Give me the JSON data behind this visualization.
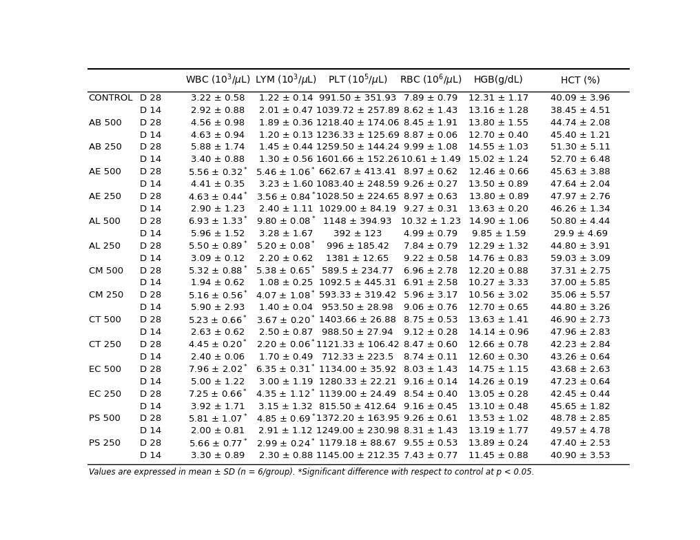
{
  "col_headers": [
    "WBC (10^3/uL)",
    "LYM (10^3/uL)",
    "PLT (10^5/uL)",
    "RBC (10^6/uL)",
    "HGB(g/dL)",
    "HCT (%)"
  ],
  "rows": [
    [
      "CONTROL",
      "D 28",
      "3.22 +/- 0.58",
      "1.22 +/- 0.14",
      "991.50 +/- 351.93",
      "7.89 +/- 0.79",
      "12.31 +/- 1.17",
      "40.09 +/- 3.96"
    ],
    [
      "",
      "D 14",
      "2.92 +/- 0.88",
      "2.01 +/- 0.47",
      "1039.72 +/- 257.89",
      "8.62 +/- 1.43",
      "13.16 +/- 1.28",
      "38.45 +/- 4.51"
    ],
    [
      "AB 500",
      "D 28",
      "4.56 +/- 0.98",
      "1.89 +/- 0.36",
      "1218.40 +/- 174.06",
      "8.45 +/- 1.91",
      "13.80 +/- 1.55",
      "44.74 +/- 2.08"
    ],
    [
      "",
      "D 14",
      "4.63 +/- 0.94",
      "1.20 +/- 0.13",
      "1236.33 +/- 125.69",
      "8.87 +/- 0.06",
      "12.70 +/- 0.40",
      "45.40 +/- 1.21"
    ],
    [
      "AB 250",
      "D 28",
      "5.88 +/- 1.74",
      "1.45 +/- 0.44",
      "1259.50 +/- 144.24",
      "9.99 +/- 1.08",
      "14.55 +/- 1.03",
      "51.30 +/- 5.11"
    ],
    [
      "",
      "D 14",
      "3.40 +/- 0.88",
      "1.30 +/- 0.56",
      "1601.66 +/- 152.26",
      "10.61 +/- 1.49",
      "15.02 +/- 1.24",
      "52.70 +/- 6.48"
    ],
    [
      "AE 500",
      "D 28",
      "5.56 +/- 0.32*",
      "5.46 +/- 1.06*",
      "662.67 +/- 413.41",
      "8.97 +/- 0.62",
      "12.46 +/- 0.66",
      "45.63 +/- 3.88"
    ],
    [
      "",
      "D 14",
      "4.41 +/- 0.35",
      "3.23 +/- 1.60",
      "1083.40 +/- 248.59",
      "9.26 +/- 0.27",
      "13.50 +/- 0.89",
      "47.64 +/- 2.04"
    ],
    [
      "AE 250",
      "D 28",
      "4.63 +/- 0.44*",
      "3.56 +/- 0.84*",
      "1028.50 +/- 224.65",
      "8.97 +/- 0.63",
      "13.80 +/- 0.89",
      "47.97 +/- 2.76"
    ],
    [
      "",
      "D 14",
      "2.90 +/- 1.23",
      "2.40 +/- 1.11",
      "1029.00 +/- 84.19",
      "9.27 +/- 0.31",
      "13.63 +/- 0.20",
      "46.26 +/- 1.34"
    ],
    [
      "AL 500",
      "D 28",
      "6.93 +/- 1.33*",
      "9.80 +/- 0.08*",
      "1148 +/- 394.93",
      "10.32 +/- 1.23",
      "14.90 +/- 1.06",
      "50.80 +/- 4.44"
    ],
    [
      "",
      "D 14",
      "5.96 +/- 1.52",
      "3.28 +/- 1.67",
      "392 +/- 123",
      "4.99 +/- 0.79",
      "9.85 +/- 1.59",
      "29.9 +/- 4.69"
    ],
    [
      "AL 250",
      "D 28",
      "5.50 +/- 0.89*",
      "5.20 +/- 0.08*",
      "996 +/- 185.42",
      "7.84 +/- 0.79",
      "12.29 +/- 1.32",
      "44.80 +/- 3.91"
    ],
    [
      "",
      "D 14",
      "3.09 +/- 0.12",
      "2.20 +/- 0.62",
      "1381 +/- 12.65",
      "9.22 +/- 0.58",
      "14.76 +/- 0.83",
      "59.03 +/- 3.09"
    ],
    [
      "CM 500",
      "D 28",
      "5.32 +/- 0.88*",
      "5.38 +/- 0.65*",
      "589.5 +/- 234.77",
      "6.96 +/- 2.78",
      "12.20 +/- 0.88",
      "37.31 +/- 2.75"
    ],
    [
      "",
      "D 14",
      "1.94 +/- 0.62",
      "1.08 +/- 0.25",
      "1092.5 +/- 445.31",
      "6.91 +/- 2.58",
      "10.27 +/- 3.33",
      "37.00 +/- 5.85"
    ],
    [
      "CM 250",
      "D 28",
      "5.16 +/- 0.56*",
      "4.07 +/- 1.08*",
      "593.33 +/- 319.42",
      "5.96 +/- 3.17",
      "10.56 +/- 3.02",
      "35.06 +/- 5.57"
    ],
    [
      "",
      "D 14",
      "5.90 +/- 2.93",
      "1.40 +/- 0.04",
      "953.50 +/- 28.98",
      "9.06 +/- 0.76",
      "12.70 +/- 0.65",
      "44.80 +/- 3.26"
    ],
    [
      "CT 500",
      "D 28",
      "5.23 +/- 0.66*",
      "3.67 +/- 0.20*",
      "1403.66 +/- 26.88",
      "8.75 +/- 0.53",
      "13.63 +/- 1.41",
      "46.90 +/- 2.73"
    ],
    [
      "",
      "D 14",
      "2.63 +/- 0.62",
      "2.50 +/- 0.87",
      "988.50 +/- 27.94",
      "9.12 +/- 0.28",
      "14.14 +/- 0.96",
      "47.96 +/- 2.83"
    ],
    [
      "CT 250",
      "D 28",
      "4.45 +/- 0.20*",
      "2.20 +/- 0.06*",
      "1121.33 +/- 106.42",
      "8.47 +/- 0.60",
      "12.66 +/- 0.78",
      "42.23 +/- 2.84"
    ],
    [
      "",
      "D 14",
      "2.40 +/- 0.06",
      "1.70 +/- 0.49",
      "712.33 +/- 223.5",
      "8.74 +/- 0.11",
      "12.60 +/- 0.30",
      "43.26 +/- 0.64"
    ],
    [
      "EC 500",
      "D 28",
      "7.96 +/- 2.02*",
      "6.35 +/- 0.31*",
      "1134.00 +/- 35.92",
      "8.03 +/- 1.43",
      "14.75 +/- 1.15",
      "43.68 +/- 2.63"
    ],
    [
      "",
      "D 14",
      "5.00 +/- 1.22",
      "3.00 +/- 1.19",
      "1280.33 +/- 22.21",
      "9.16 +/- 0.14",
      "14.26 +/- 0.19",
      "47.23 +/- 0.64"
    ],
    [
      "EC 250",
      "D 28",
      "7.25 +/- 0.66*",
      "4.35 +/- 1.12*",
      "1139.00 +/- 24.49",
      "8.54 +/- 0.40",
      "13.05 +/- 0.28",
      "42.45 +/- 0.44"
    ],
    [
      "",
      "D 14",
      "3.92 +/- 1.71",
      "3.15 +/- 1.32",
      "815.50 +/- 412.64",
      "9.16 +/- 0.45",
      "13.10 +/- 0.48",
      "45.65 +/- 1.82"
    ],
    [
      "PS 500",
      "D 28",
      "5.81 +/- 1.07*",
      "4.85 +/- 0.69*",
      "1372.20 +/- 163.95",
      "9.26 +/- 0.61",
      "13.53 +/- 1.02",
      "48.78 +/- 2.85"
    ],
    [
      "",
      "D 14",
      "2.00 +/- 0.81",
      "2.91 +/- 1.12",
      "1249.00 +/- 230.98",
      "8.31 +/- 1.43",
      "13.19 +/- 1.77",
      "49.57 +/- 4.78"
    ],
    [
      "PS 250",
      "D 28",
      "5.66 +/- 0.77*",
      "2.99 +/- 0.24*",
      "1179.18 +/- 88.67",
      "9.55 +/- 0.53",
      "13.89 +/- 0.24",
      "47.40 +/- 2.53"
    ],
    [
      "",
      "D 14",
      "3.30 +/- 0.89",
      "2.30 +/- 0.88",
      "1145.00 +/- 212.35",
      "7.43 +/- 0.77",
      "11.45 +/- 0.88",
      "40.90 +/- 3.53"
    ]
  ],
  "footer": "Values are expressed in mean +/- SD (n = 6/group). *Significant difference with respect to control at p < 0.05.",
  "bg_color": "#ffffff",
  "text_color": "#000000",
  "font_size": 9.5,
  "header_font_size": 10.0
}
